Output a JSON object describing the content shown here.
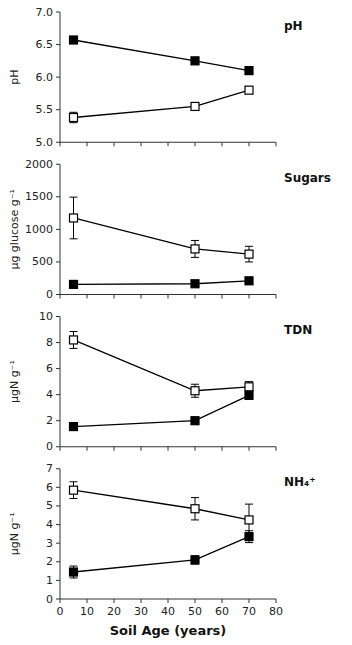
{
  "chart_data": [
    {
      "type": "line",
      "title": "pH",
      "ylabel": "pH",
      "x": [
        5,
        50,
        70
      ],
      "xlim": [
        0,
        80
      ],
      "xticks": [
        0,
        10,
        20,
        30,
        40,
        50,
        60,
        70,
        80
      ],
      "ylim": [
        5.0,
        7.0
      ],
      "yticks": [
        {
          "value": 5.0,
          "label": "5.0"
        },
        5.5,
        {
          "value": 6.0,
          "label": "6.0"
        },
        6.5,
        {
          "value": 7.0,
          "label": "7.0"
        }
      ],
      "tick_labels": "y",
      "grid": false,
      "series": [
        {
          "color": "black",
          "marker": "square-open",
          "line_style": "solid",
          "values": [
            5.38,
            5.55,
            5.8
          ],
          "errors": [
            0.08,
            0.0,
            0.0
          ]
        },
        {
          "color": "black",
          "marker": "square",
          "line_style": "solid",
          "values": [
            6.57,
            6.25,
            6.1
          ],
          "errors": [
            0.0,
            0.0,
            0.0
          ]
        }
      ]
    },
    {
      "type": "line",
      "title": "Sugars",
      "ylabel": "μg glucose g⁻¹",
      "x": [
        5,
        50,
        70
      ],
      "xlim": [
        0,
        80
      ],
      "xticks": [
        0,
        10,
        20,
        30,
        40,
        50,
        60,
        70,
        80
      ],
      "ylim": [
        0,
        2000
      ],
      "yticks": [
        0,
        500,
        1000,
        1500,
        2000
      ],
      "tick_labels": "y",
      "grid": false,
      "series": [
        {
          "color": "black",
          "marker": "square-open",
          "line_style": "solid",
          "values": [
            1175,
            700,
            620
          ],
          "errors": [
            320,
            130,
            120
          ]
        },
        {
          "color": "black",
          "marker": "square",
          "line_style": "solid",
          "values": [
            155,
            165,
            210
          ],
          "errors": [
            18,
            18,
            22
          ]
        }
      ]
    },
    {
      "type": "line",
      "title": "TDN",
      "ylabel": "μgN g⁻¹",
      "x": [
        5,
        50,
        70
      ],
      "xlim": [
        0,
        80
      ],
      "xticks": [
        0,
        10,
        20,
        30,
        40,
        50,
        60,
        70,
        80
      ],
      "ylim": [
        0.0,
        10.0
      ],
      "yticks": [
        0.0,
        2.0,
        4.0,
        6.0,
        8.0,
        10.0
      ],
      "tick_labels": "y",
      "grid": false,
      "series": [
        {
          "color": "black",
          "marker": "square-open",
          "line_style": "solid",
          "values": [
            8.2,
            4.3,
            4.6
          ],
          "errors": [
            0.65,
            0.5,
            0.4
          ]
        },
        {
          "color": "black",
          "marker": "square",
          "line_style": "solid",
          "values": [
            1.55,
            2.0,
            3.95
          ],
          "errors": [
            0.15,
            0.18,
            0.28
          ]
        }
      ]
    },
    {
      "type": "line",
      "title": "NH₄⁺",
      "ylabel": "μgN g⁻¹",
      "xlabel": "Soil Age (years)",
      "x": [
        5,
        50,
        70
      ],
      "xlim": [
        0,
        80
      ],
      "xticks": [
        0,
        10,
        20,
        30,
        40,
        50,
        60,
        70,
        80
      ],
      "ylim": [
        0.0,
        7.0
      ],
      "yticks": [
        0.0,
        1.0,
        2.0,
        3.0,
        4.0,
        5.0,
        6.0,
        7.0
      ],
      "grid": false,
      "series": [
        {
          "color": "black",
          "marker": "square-open",
          "line_style": "solid",
          "values": [
            5.85,
            4.85,
            4.25
          ],
          "errors": [
            0.45,
            0.6,
            0.85
          ]
        },
        {
          "color": "black",
          "marker": "square",
          "line_style": "solid",
          "values": [
            1.45,
            2.1,
            3.35
          ],
          "errors": [
            0.32,
            0.22,
            0.32
          ]
        }
      ]
    }
  ]
}
